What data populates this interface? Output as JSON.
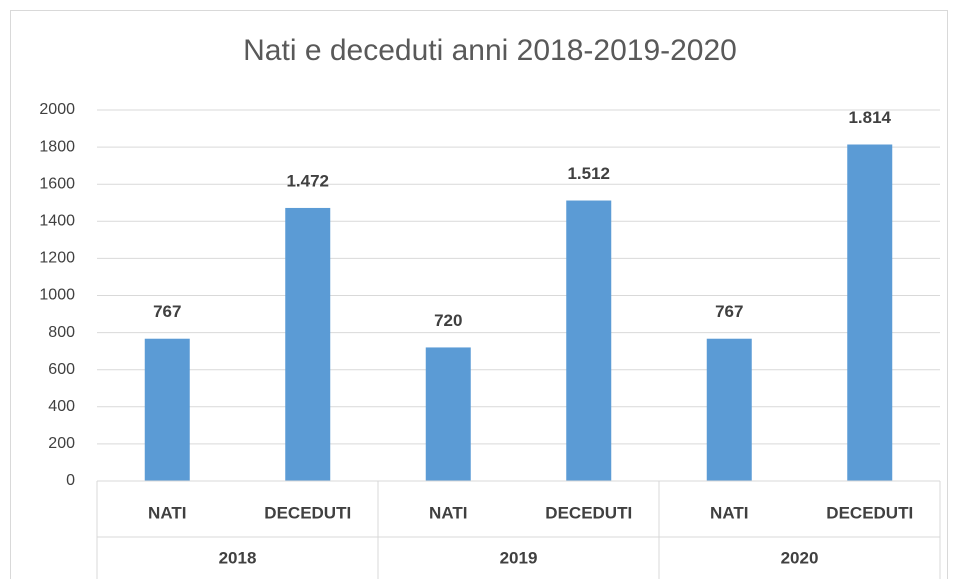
{
  "chart_data": {
    "type": "bar",
    "title": "Nati e deceduti anni 2018-2019-2020",
    "categories": [
      "NATI",
      "DECEDUTI",
      "NATI",
      "DECEDUTI",
      "NATI",
      "DECEDUTI"
    ],
    "groups": [
      "2018",
      "2019",
      "2020"
    ],
    "values": [
      767,
      1472,
      720,
      1512,
      767,
      1814
    ],
    "value_labels": [
      "767",
      "1.472",
      "720",
      "1.512",
      "767",
      "1.814"
    ],
    "color": "#5b9bd5",
    "ylim": [
      0,
      2000
    ],
    "yticks": [
      0,
      200,
      400,
      600,
      800,
      1000,
      1200,
      1400,
      1600,
      1800,
      2000
    ],
    "grid": true
  }
}
